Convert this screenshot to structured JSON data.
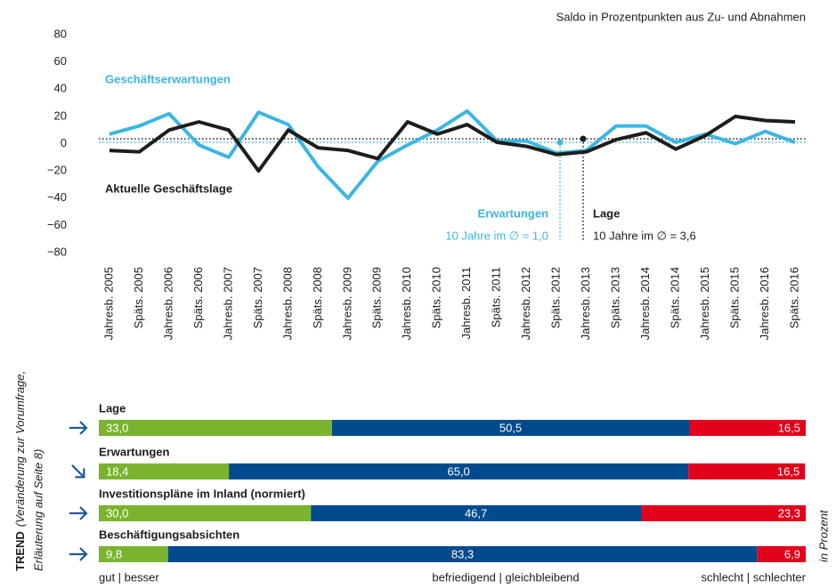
{
  "chart_data": [
    {
      "type": "line",
      "subtitle": "Saldo in Prozentpunkten aus Zu- und Abnahmen",
      "categories": [
        "Jahresb. 2005",
        "Späts. 2005",
        "Jahresb. 2006",
        "Späts. 2006",
        "Jahresb. 2007",
        "Späts. 2007",
        "Jahresb. 2008",
        "Späts. 2008",
        "Jahresb. 2009",
        "Späts. 2009",
        "Jahresb. 2010",
        "Späts. 2010",
        "Jahresb. 2011",
        "Späts. 2011",
        "Jahresb. 2012",
        "Späts. 2012",
        "Jahresb. 2013",
        "Späts. 2013",
        "Jahresb. 2014",
        "Späts. 2014",
        "Jahresb. 2015",
        "Späts. 2015",
        "Jahresb. 2016",
        "Späts. 2016"
      ],
      "series": [
        {
          "name": "Geschäftserwartungen",
          "color": "#3cb6e1",
          "values": [
            7,
            13,
            22,
            -1,
            -10,
            23,
            14,
            -17,
            -40,
            -13,
            -1,
            10,
            24,
            2,
            2,
            -7,
            -5,
            13,
            13,
            1,
            7,
            0,
            9,
            1
          ],
          "average": 1.0,
          "average_title": "Erwartungen",
          "average_label": "10 Jahre im ∅ = 1,0"
        },
        {
          "name": "Aktuelle Geschäftslage",
          "color": "#1d1d1b",
          "values": [
            -5,
            -6,
            10,
            16,
            10,
            -20,
            10,
            -3,
            -5,
            -11,
            16,
            7,
            14,
            1,
            -2,
            -8,
            -6,
            3,
            8,
            -4,
            6,
            20,
            17,
            16
          ],
          "average": 3.6,
          "average_title": "Lage",
          "average_label": "10 Jahre im ∅ = 3,6"
        }
      ],
      "ylim": [
        -80,
        80
      ],
      "yticks": [
        {
          "value": -80,
          "label": "−80"
        },
        {
          "value": -60,
          "label": "−60"
        },
        {
          "value": -40,
          "label": "−40"
        },
        {
          "value": -20,
          "label": "−20"
        },
        0,
        20,
        40,
        60,
        80
      ]
    },
    {
      "type": "bar",
      "orientation": "horizontal",
      "stacked": true,
      "axis_label": "TREND",
      "axis_note": [
        "(Veränderung zur Vorumfrage,",
        "Erläuterung auf Seite 8)"
      ],
      "unit_label": "in Prozent",
      "categories": [
        "Lage",
        "Erwartungen",
        "Investitionspläne im Inland (normiert)",
        "Beschäftigungsabsichten"
      ],
      "trends": [
        "right",
        "down-right",
        "right",
        "right"
      ],
      "xlim": [
        0,
        100
      ],
      "series": [
        {
          "name": "gut | besser",
          "color": "#7ab42e",
          "values": [
            33.0,
            18.4,
            30.0,
            9.8
          ],
          "value_labels": [
            "33,0",
            "18,4",
            "30,0",
            "9,8"
          ]
        },
        {
          "name": "befriedigend | gleichbleibend",
          "color": "#004b8d",
          "values": [
            50.5,
            65.0,
            46.7,
            83.3
          ],
          "value_labels": [
            "50,5",
            "65,0",
            "46,7",
            "83,3"
          ]
        },
        {
          "name": "schlecht | schlechter",
          "color": "#e2001a",
          "values": [
            16.5,
            16.5,
            23.3,
            6.9
          ],
          "value_labels": [
            "16,5",
            "16,5",
            "23,3",
            "6,9"
          ]
        }
      ]
    }
  ]
}
